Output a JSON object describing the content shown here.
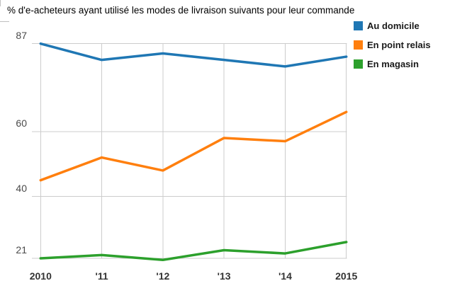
{
  "title": "% d'e-acheteurs ayant utilisé les modes de livraison suivants pour leur commande",
  "chart_data": {
    "type": "line",
    "title": "% d'e-acheteurs ayant utilisé les modes de livraison suivants pour leur commande",
    "x": [
      "2010",
      "'11",
      "'12",
      "'13",
      "'14",
      "2015"
    ],
    "series": [
      {
        "name": "Au domicile",
        "color": "#1f77b4",
        "values": [
          87,
          82,
          84,
          82,
          80,
          83
        ]
      },
      {
        "name": "En point relais",
        "color": "#ff7f0e",
        "values": [
          45,
          52,
          48,
          58,
          57,
          66
        ]
      },
      {
        "name": "En magasin",
        "color": "#2ca02c",
        "values": [
          21,
          22,
          20.5,
          23.5,
          22.5,
          26
        ]
      }
    ],
    "y_ticks": [
      87,
      60,
      40,
      21
    ],
    "ylim": [
      19,
      88
    ],
    "xlabel": "",
    "ylabel": "",
    "grid": true,
    "legend_position": "top-right"
  },
  "colors": {
    "grid": "#cccccc",
    "y_tick_label": "#4a4a4a",
    "x_tick_label": "#333333",
    "title": "#000000",
    "legend_label": "#1a1a1a"
  }
}
